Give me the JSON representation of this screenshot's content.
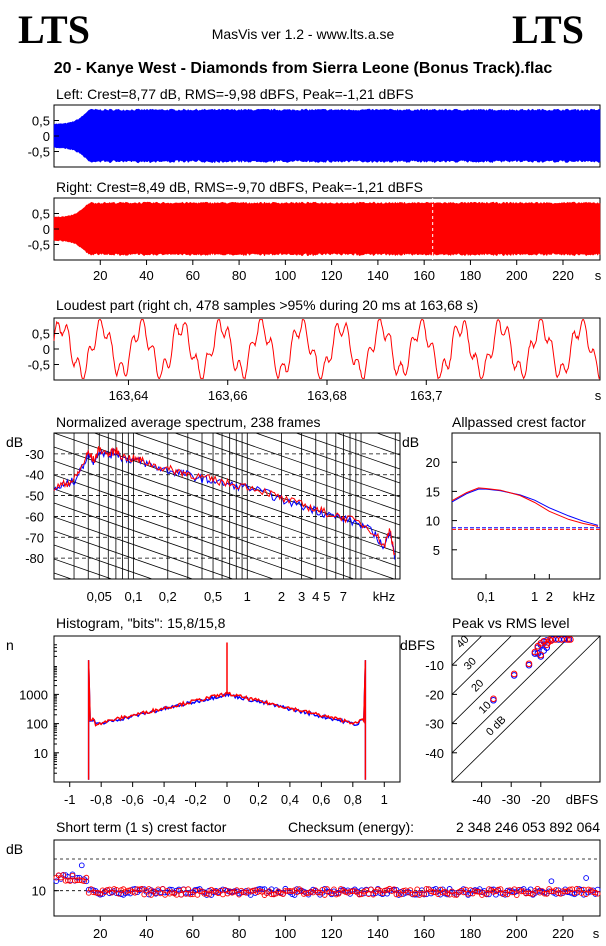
{
  "header": {
    "logo_left": "LTS",
    "logo_right": "LTS",
    "app_title": "MasVis ver 1.2 - www.lts.a.se",
    "file_title": "20 - Kanye West - Diamonds from Sierra Leone (Bonus Track).flac"
  },
  "colors": {
    "left": "#0000ff",
    "right": "#ff0000"
  },
  "chart_data": [
    {
      "type": "area",
      "title": "Left: Crest=8,77 dB, RMS=-9,98 dBFS, Peak=-1,21 dBFS",
      "channel": "left",
      "stats": {
        "crest_db": 8.77,
        "rms_dbfs": -9.98,
        "peak_dbfs": -1.21
      },
      "ylim": [
        -1,
        1
      ],
      "yticks": [
        "0,5",
        "0",
        "-0,5"
      ],
      "ytick_values": [
        0.5,
        0,
        -0.5
      ],
      "xlim": [
        0,
        236
      ],
      "envelope": {
        "fade_in_end_s": 15,
        "level": 0.87,
        "intro_level": 0.4,
        "end_s": 236
      }
    },
    {
      "type": "area",
      "title": "Right: Crest=8,49 dB, RMS=-9,70 dBFS, Peak=-1,21 dBFS",
      "channel": "right",
      "stats": {
        "crest_db": 8.49,
        "rms_dbfs": -9.7,
        "peak_dbfs": -1.21
      },
      "ylim": [
        -1,
        1
      ],
      "yticks": [
        "0,5",
        "0",
        "-0,5"
      ],
      "ytick_values": [
        0.5,
        0,
        -0.5
      ],
      "xlim": [
        0,
        236
      ],
      "marker_s": 163.68,
      "envelope": {
        "fade_in_end_s": 15,
        "level": 0.87,
        "intro_level": 0.4,
        "end_s": 236
      },
      "xticks": [
        "20",
        "40",
        "60",
        "80",
        "100",
        "120",
        "140",
        "160",
        "180",
        "200",
        "220",
        "s"
      ],
      "xtick_values": [
        20,
        40,
        60,
        80,
        100,
        120,
        140,
        160,
        180,
        200,
        220
      ]
    },
    {
      "type": "line",
      "title": "Loudest part (right ch, 478 samples >95% during 20 ms at 163,68 s)",
      "xlim": [
        163.625,
        163.735
      ],
      "ylim": [
        -1,
        1
      ],
      "yticks": [
        "0,5",
        "0",
        "-0,5"
      ],
      "ytick_values": [
        0.5,
        0,
        -0.5
      ],
      "xticks": [
        "163,64",
        "163,66",
        "163,68",
        "163,7",
        "s"
      ],
      "xtick_values": [
        163.64,
        163.66,
        163.68,
        163.7
      ],
      "clip_level": 0.95
    },
    {
      "type": "line",
      "title": "Normalized average spectrum, 238 frames",
      "ylabel": "dB",
      "xunit": "kHz",
      "log_x": true,
      "xlim_khz": [
        0.02,
        22
      ],
      "ylim": [
        -90,
        -20
      ],
      "yticks": [
        "-30",
        "-40",
        "-50",
        "-60",
        "-70",
        "-80"
      ],
      "ytick_values": [
        -30,
        -40,
        -50,
        -60,
        -70,
        -80
      ],
      "xticks": [
        "0,05",
        "0,1",
        "0,2",
        "0,5",
        "1",
        "2",
        "3",
        "4",
        "5",
        "7",
        "kHz"
      ],
      "xtick_values": [
        0.05,
        0.1,
        0.2,
        0.5,
        1,
        2,
        3,
        4,
        5,
        7
      ],
      "spectrum_points": [
        [
          0.02,
          -47
        ],
        [
          0.025,
          -45
        ],
        [
          0.03,
          -43
        ],
        [
          0.035,
          -37
        ],
        [
          0.04,
          -30
        ],
        [
          0.045,
          -34
        ],
        [
          0.05,
          -28
        ],
        [
          0.06,
          -31
        ],
        [
          0.07,
          -29
        ],
        [
          0.08,
          -32
        ],
        [
          0.1,
          -33
        ],
        [
          0.12,
          -34
        ],
        [
          0.15,
          -36
        ],
        [
          0.2,
          -38
        ],
        [
          0.25,
          -39
        ],
        [
          0.3,
          -40
        ],
        [
          0.4,
          -42
        ],
        [
          0.5,
          -43
        ],
        [
          0.7,
          -45
        ],
        [
          1,
          -46
        ],
        [
          1.5,
          -49
        ],
        [
          2,
          -52
        ],
        [
          3,
          -55
        ],
        [
          4,
          -57
        ],
        [
          5,
          -59
        ],
        [
          7,
          -61
        ],
        [
          10,
          -64
        ],
        [
          13,
          -68
        ],
        [
          16,
          -75
        ],
        [
          18,
          -66
        ],
        [
          20,
          -82
        ]
      ]
    },
    {
      "type": "line",
      "title": "Allpassed crest factor",
      "ylabel": "dB",
      "xunit": "kHz",
      "log_x": true,
      "xlim_khz": [
        0.02,
        22
      ],
      "ylim": [
        0,
        25
      ],
      "yticks": [
        "20",
        "15",
        "10",
        "5"
      ],
      "ytick_values": [
        20,
        15,
        10,
        5
      ],
      "xticks": [
        "0,1",
        "1",
        "2",
        "kHz"
      ],
      "xtick_values": [
        0.1,
        1,
        2
      ],
      "series": [
        {
          "channel": "left",
          "points": [
            [
              0.02,
              13.2
            ],
            [
              0.04,
              14.6
            ],
            [
              0.07,
              15.4
            ],
            [
              0.1,
              15.4
            ],
            [
              0.2,
              15.1
            ],
            [
              0.5,
              14.4
            ],
            [
              1,
              13.5
            ],
            [
              2,
              12.2
            ],
            [
              5,
              10.8
            ],
            [
              10,
              9.9
            ],
            [
              20,
              9.2
            ]
          ]
        },
        {
          "channel": "right",
          "points": [
            [
              0.02,
              13.4
            ],
            [
              0.04,
              14.8
            ],
            [
              0.07,
              15.6
            ],
            [
              0.1,
              15.5
            ],
            [
              0.2,
              15.2
            ],
            [
              0.5,
              14.3
            ],
            [
              1,
              13.1
            ],
            [
              2,
              11.6
            ],
            [
              5,
              10.2
            ],
            [
              10,
              9.5
            ],
            [
              20,
              9.0
            ]
          ]
        }
      ],
      "reference_lines": [
        8.77,
        8.49
      ]
    },
    {
      "type": "line",
      "title": "Histogram, \"bits\": 15,8/15,8",
      "bits": {
        "left": 15.8,
        "right": 15.8
      },
      "ylabel": "n",
      "log_y": true,
      "xlim": [
        -1.1,
        1.1
      ],
      "ylim_log": [
        1,
        100000
      ],
      "yticks": [
        "1000",
        "100",
        "10"
      ],
      "ytick_values": [
        1000,
        100,
        10
      ],
      "xticks": [
        "-1",
        "-0,8",
        "-0,6",
        "-0,4",
        "-0,2",
        "0",
        "0,2",
        "0,4",
        "0,6",
        "0,8",
        "1"
      ],
      "xtick_values": [
        -1,
        -0.8,
        -0.6,
        -0.4,
        -0.2,
        0,
        0.2,
        0.4,
        0.6,
        0.8,
        1
      ],
      "clip_value": 0.88,
      "edge_spike": 15000,
      "center_spike": 60000,
      "center_level": 1000,
      "edge_level": 80
    },
    {
      "type": "scatter",
      "title": "Peak vs RMS level",
      "xunit": "dBFS",
      "yunit": "dBFS",
      "xlim": [
        -50,
        0
      ],
      "ylim": [
        -50,
        0
      ],
      "yticks": [
        "-10",
        "-20",
        "-30",
        "-40"
      ],
      "ytick_values": [
        -10,
        -20,
        -30,
        -40
      ],
      "xticks": [
        "-40",
        "-30",
        "-20",
        "dBFS"
      ],
      "xtick_values": [
        -40,
        -30,
        -20
      ],
      "diagonal_labels": [
        "40",
        "30",
        "20",
        "10",
        "0 dB"
      ],
      "diagonal_values": [
        40,
        30,
        20,
        10,
        0
      ],
      "series": [
        {
          "channel": "left",
          "points": [
            [
              -29,
              -13.5
            ],
            [
              -36,
              -22
            ],
            [
              -24,
              -10
            ],
            [
              -22,
              -6
            ],
            [
              -21,
              -4
            ],
            [
              -20,
              -3
            ],
            [
              -19,
              -2
            ],
            [
              -18,
              -1.5
            ],
            [
              -16,
              -1.2
            ],
            [
              -14,
              -1.2
            ],
            [
              -12,
              -1.2
            ],
            [
              -10.5,
              -1.2
            ],
            [
              -20,
              -7
            ],
            [
              -19,
              -5
            ],
            [
              -21,
              -6
            ],
            [
              -18,
              -4
            ]
          ]
        },
        {
          "channel": "right",
          "points": [
            [
              -29,
              -13
            ],
            [
              -36,
              -21.5
            ],
            [
              -24,
              -9.5
            ],
            [
              -22,
              -5.5
            ],
            [
              -21,
              -3.5
            ],
            [
              -20,
              -2.5
            ],
            [
              -19,
              -1.8
            ],
            [
              -17,
              -1.3
            ],
            [
              -15,
              -1.2
            ],
            [
              -13,
              -1.2
            ],
            [
              -11,
              -1.2
            ],
            [
              -10,
              -1.2
            ],
            [
              -20,
              -6.5
            ],
            [
              -18,
              -3
            ],
            [
              -17.5,
              -2.2
            ],
            [
              -16.5,
              -1.6
            ]
          ]
        }
      ]
    },
    {
      "type": "scatter",
      "title": "Short term (1 s) crest factor",
      "checksum_label": "Checksum (energy):",
      "checksum_value": "2 348 246 053 892 064",
      "ylabel": "dB",
      "xlim": [
        0,
        236
      ],
      "ylim": [
        6,
        18
      ],
      "yticks": [
        "10"
      ],
      "ytick_values": [
        10
      ],
      "dashed_levels": [
        10,
        15
      ],
      "xticks": [
        "20",
        "40",
        "60",
        "80",
        "100",
        "120",
        "140",
        "160",
        "180",
        "200",
        "220",
        "s"
      ],
      "xtick_values": [
        20,
        40,
        60,
        80,
        100,
        120,
        140,
        160,
        180,
        200,
        220
      ],
      "baseline": 9.8,
      "intro_end_s": 15,
      "intro_level": 12,
      "peaks": [
        [
          12,
          14
        ],
        [
          4,
          12.5
        ],
        [
          1,
          11.5
        ],
        [
          215,
          11.5
        ],
        [
          230,
          12
        ]
      ]
    }
  ]
}
